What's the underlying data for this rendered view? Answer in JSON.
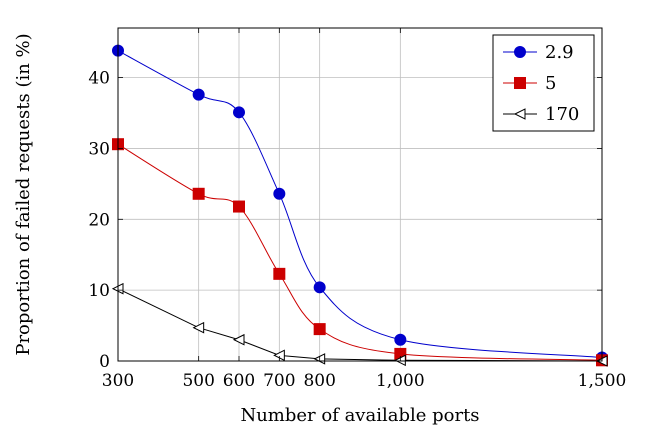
{
  "chart_data": {
    "type": "line",
    "title": "",
    "xlabel": "Number of available ports",
    "ylabel": "Proportion of failed requests (in %)",
    "xlim": [
      300,
      1500
    ],
    "ylim": [
      0,
      47
    ],
    "grid": true,
    "legend_position": "top-right",
    "x_ticks": [
      300,
      500,
      600,
      700,
      800,
      1000,
      1500
    ],
    "x_tick_labels": [
      "300",
      "500",
      "600",
      "700",
      "800",
      "1,000",
      "1,500"
    ],
    "y_ticks": [
      0,
      10,
      20,
      30,
      40
    ],
    "y_tick_labels": [
      "0",
      "10",
      "20",
      "30",
      "40"
    ],
    "series": [
      {
        "name": "2.9",
        "color": "#0000cc",
        "marker": "circle",
        "x": [
          300,
          500,
          600,
          700,
          800,
          1000,
          1500
        ],
        "y": [
          43.8,
          37.6,
          35.1,
          23.6,
          10.4,
          3.0,
          0.5
        ]
      },
      {
        "name": "5",
        "color": "#cc0000",
        "marker": "square",
        "x": [
          300,
          500,
          600,
          700,
          800,
          1000,
          1500
        ],
        "y": [
          30.6,
          23.6,
          21.8,
          12.3,
          4.5,
          1.0,
          0.1
        ]
      },
      {
        "name": "170",
        "color": "#000000",
        "marker": "triangle-left",
        "x": [
          300,
          500,
          600,
          700,
          800,
          1000,
          1500
        ],
        "y": [
          10.2,
          4.7,
          3.0,
          0.8,
          0.3,
          0.1,
          0.0
        ]
      }
    ]
  }
}
